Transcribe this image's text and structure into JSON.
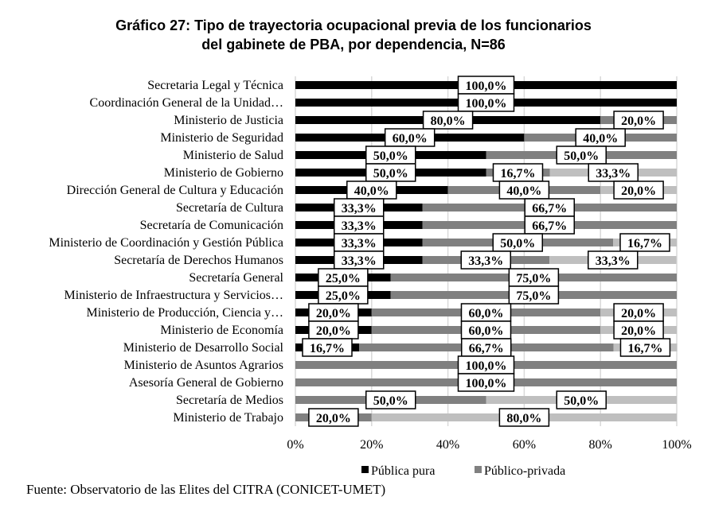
{
  "chart_data": {
    "type": "bar",
    "orientation": "horizontal",
    "stacked": "percent",
    "title": [
      "Gráfico 27: Tipo de trayectoria ocupacional previa de los funcionarios",
      "del gabinete de PBA, por dependencia, N=86"
    ],
    "categories": [
      "Secretaria Legal y Técnica",
      "Coordinación General de la Unidad…",
      "Ministerio de Justicia",
      "Ministerio de Seguridad",
      "Ministerio de Salud",
      "Ministerio de Gobierno",
      "Dirección General de Cultura y Educación",
      "Secretaría de Cultura",
      "Secretaría de Comunicación",
      "Ministerio de Coordinación y Gestión Pública",
      "Secretaría de Derechos Humanos",
      "Secretaría General",
      "Ministerio de Infraestructura y Servicios…",
      "Ministerio de Producción, Ciencia y…",
      "Ministerio de Economía",
      "Ministerio de Desarrollo Social",
      "Ministerio de Asuntos Agrarios",
      "Asesoría General de Gobierno",
      "Secretaría de Medios",
      "Ministerio de Trabajo"
    ],
    "series": [
      {
        "name": "Pública pura",
        "color": "#000000",
        "values": [
          100,
          100,
          80,
          60,
          50,
          50,
          40,
          33.3,
          33.3,
          33.3,
          33.3,
          25,
          25,
          20,
          20,
          16.7,
          0,
          0,
          0,
          0
        ]
      },
      {
        "name": "Público-privada",
        "color": "#808080",
        "values": [
          0,
          0,
          20,
          40,
          50,
          16.7,
          40,
          66.7,
          66.7,
          50,
          33.3,
          75,
          75,
          60,
          60,
          66.7,
          100,
          100,
          50,
          20
        ]
      },
      {
        "name": "",
        "color": "#bfbfbf",
        "values": [
          0,
          0,
          0,
          0,
          0,
          33.3,
          20,
          0,
          0,
          16.7,
          33.3,
          0,
          0,
          20,
          20,
          16.7,
          0,
          0,
          50,
          80
        ]
      }
    ],
    "xlim": [
      0,
      100
    ],
    "xticks": [
      "0%",
      "20%",
      "40%",
      "60%",
      "80%",
      "100%"
    ],
    "grid": true,
    "legend": "bottom",
    "source": "Fuente: Observatorio de las Elites del CITRA  (CONICET-UMET)"
  }
}
